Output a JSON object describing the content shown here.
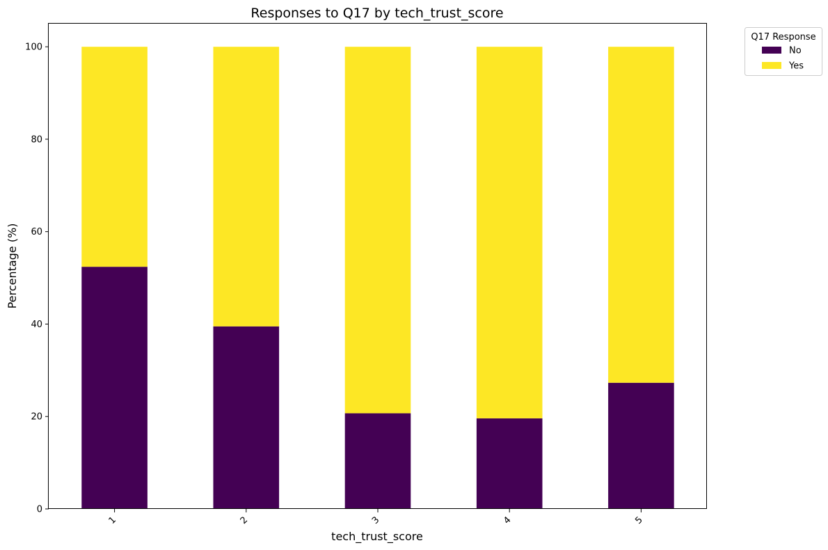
{
  "chart_data": {
    "type": "bar",
    "stacked": true,
    "title": "Responses to Q17 by tech_trust_score",
    "xlabel": "tech_trust_score",
    "ylabel": "Percentage (%)",
    "categories": [
      "1",
      "2",
      "3",
      "4",
      "5"
    ],
    "series": [
      {
        "name": "No",
        "color": "#440154",
        "values": [
          52.4,
          39.5,
          20.7,
          19.6,
          27.3
        ]
      },
      {
        "name": "Yes",
        "color": "#fde725",
        "values": [
          47.6,
          60.5,
          79.3,
          80.4,
          72.7
        ]
      }
    ],
    "ylim": [
      0,
      105
    ],
    "yticks": [
      0,
      20,
      40,
      60,
      80,
      100
    ],
    "legend": {
      "title": "Q17 Response",
      "position": "outside-top-right"
    },
    "grid": false
  }
}
